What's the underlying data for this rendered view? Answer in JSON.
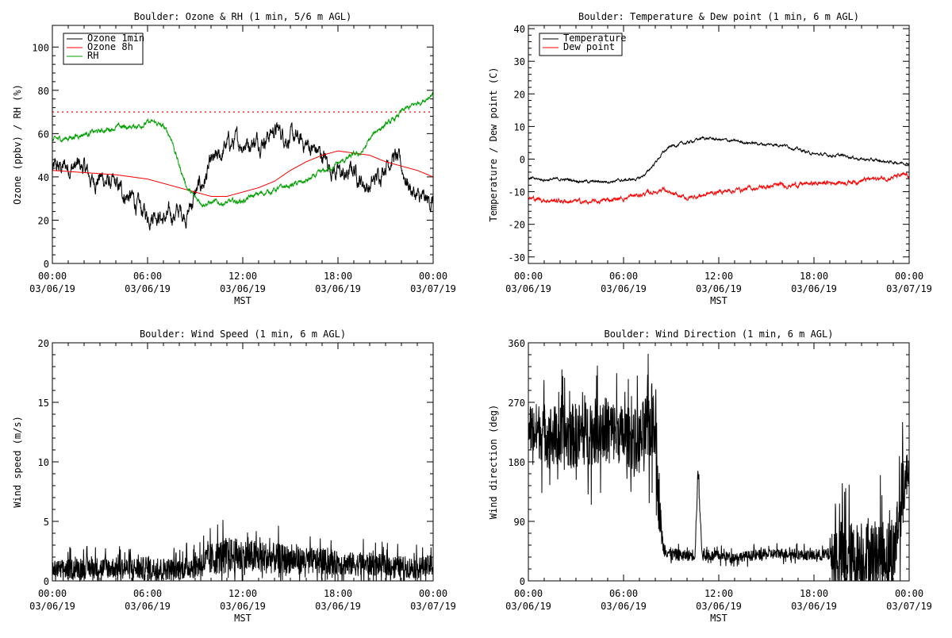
{
  "chart_data": [
    {
      "type": "line",
      "title": "Boulder: Ozone & RH (1 min, 5/6 m AGL)",
      "ylabel": "Ozone (ppbv) / RH (%)",
      "xlabel": "MST",
      "xlim": [
        0,
        24
      ],
      "ylim": [
        0,
        110
      ],
      "yticks": [
        0,
        20,
        40,
        60,
        80,
        100
      ],
      "xticks": [
        {
          "hour": 0,
          "line1": "00:00",
          "line2": "03/06/19"
        },
        {
          "hour": 6,
          "line1": "06:00",
          "line2": "03/06/19"
        },
        {
          "hour": 12,
          "line1": "12:00",
          "line2": "03/06/19"
        },
        {
          "hour": 18,
          "line1": "18:00",
          "line2": "03/06/19"
        },
        {
          "hour": 24,
          "line1": "00:00",
          "line2": "03/07/19"
        }
      ],
      "reference_line": {
        "y": 70,
        "color": "#ff0000",
        "style": "dotted"
      },
      "legend_position": "top-left",
      "series": [
        {
          "name": "Ozone 1min",
          "color": "#000000",
          "noise": 2.5,
          "x": [
            0,
            1,
            2,
            2.5,
            3,
            4,
            5,
            5.5,
            6,
            6.5,
            7,
            7.5,
            8,
            8.5,
            9,
            9.5,
            10,
            10.5,
            11,
            12,
            13,
            13.5,
            14,
            15,
            16,
            17,
            17.5,
            18,
            18.5,
            19,
            19.5,
            20,
            20.5,
            21,
            21.5,
            22,
            22.5,
            23,
            23.5,
            24
          ],
          "y": [
            43,
            45,
            44,
            38,
            40,
            35,
            30,
            25,
            22,
            25,
            20,
            22,
            24,
            23,
            32,
            37,
            45,
            48,
            55,
            56,
            57,
            59,
            62,
            58,
            55,
            50,
            45,
            42,
            40,
            44,
            38,
            35,
            40,
            47,
            50,
            44,
            36,
            30,
            28,
            29
          ]
        },
        {
          "name": "Ozone 8h",
          "color": "#ff0000",
          "noise": 0,
          "x": [
            0,
            2,
            4,
            6,
            8,
            9,
            10,
            11,
            12,
            13,
            14,
            15,
            16,
            17,
            18,
            19,
            20,
            21,
            22,
            23,
            24
          ],
          "y": [
            43,
            42,
            41,
            39,
            35,
            33,
            31,
            31,
            33,
            35,
            38,
            43,
            47,
            50,
            52,
            51,
            50,
            47,
            45,
            43,
            40
          ]
        },
        {
          "name": "RH",
          "color": "#00a000",
          "noise": 0.7,
          "x": [
            0,
            1,
            2,
            3,
            4,
            5,
            5.5,
            6,
            6.5,
            7,
            7.5,
            8,
            8.5,
            9,
            9.5,
            10,
            11,
            12,
            13,
            14,
            15,
            16,
            17,
            18,
            19,
            19.5,
            20,
            20.5,
            21,
            21.5,
            22,
            22.5,
            23,
            23.5,
            24
          ],
          "y": [
            57,
            58,
            60,
            61,
            63,
            63,
            64,
            65,
            65,
            63,
            58,
            45,
            35,
            30,
            28,
            28,
            28,
            29,
            32,
            34,
            36,
            38,
            42,
            46,
            50,
            51,
            57,
            62,
            64,
            66,
            70,
            72,
            74,
            76,
            79
          ]
        }
      ]
    },
    {
      "type": "line",
      "title": "Boulder: Temperature & Dew point (1 min, 6 m AGL)",
      "ylabel": "Temperature / Dew point (C)",
      "xlabel": "MST",
      "xlim": [
        0,
        24
      ],
      "ylim": [
        -32,
        41
      ],
      "yticks": [
        -30,
        -20,
        -10,
        0,
        10,
        20,
        30,
        40
      ],
      "xticks": [
        {
          "hour": 0,
          "line1": "00:00",
          "line2": "03/06/19"
        },
        {
          "hour": 6,
          "line1": "06:00",
          "line2": "03/06/19"
        },
        {
          "hour": 12,
          "line1": "12:00",
          "line2": "03/06/19"
        },
        {
          "hour": 18,
          "line1": "18:00",
          "line2": "03/06/19"
        },
        {
          "hour": 24,
          "line1": "00:00",
          "line2": "03/07/19"
        }
      ],
      "legend_position": "top-left",
      "series": [
        {
          "name": "Temperature",
          "color": "#000000",
          "noise": 0.25,
          "x": [
            0,
            1,
            2,
            3,
            4,
            5,
            6,
            7,
            7.5,
            8,
            8.5,
            9,
            10,
            11,
            12,
            13,
            14,
            15,
            16,
            17,
            18,
            19,
            20,
            21,
            22,
            23,
            24
          ],
          "y": [
            -6,
            -6.3,
            -6.2,
            -6.5,
            -7,
            -6.8,
            -6.5,
            -6,
            -4,
            -1,
            2,
            4,
            5,
            6.5,
            6,
            5.5,
            5,
            4.5,
            4.5,
            3,
            1.5,
            1.2,
            1,
            0,
            -0.5,
            -1,
            -1.2
          ]
        },
        {
          "name": "Dew point",
          "color": "#ff0000",
          "noise": 0.4,
          "x": [
            0,
            1,
            2,
            3,
            4,
            5,
            6,
            7,
            8,
            8.5,
            9,
            10,
            11,
            12,
            13,
            14,
            15,
            16,
            17,
            18,
            19,
            20,
            21,
            22,
            23,
            24
          ],
          "y": [
            -12,
            -12.5,
            -12.8,
            -13,
            -13.3,
            -12.5,
            -12,
            -11,
            -10,
            -9,
            -11,
            -12,
            -11,
            -10,
            -9.5,
            -9,
            -8.5,
            -8,
            -7.8,
            -7.5,
            -7.2,
            -7,
            -6.5,
            -6,
            -5.5,
            -5
          ]
        }
      ]
    },
    {
      "type": "line",
      "title": "Boulder: Wind Speed (1 min, 6 m AGL)",
      "ylabel": "Wind speed (m/s)",
      "xlabel": "MST",
      "xlim": [
        0,
        24
      ],
      "ylim": [
        0,
        20
      ],
      "yticks": [
        0,
        5,
        10,
        15,
        20
      ],
      "xticks": [
        {
          "hour": 0,
          "line1": "00:00",
          "line2": "03/06/19"
        },
        {
          "hour": 6,
          "line1": "06:00",
          "line2": "03/06/19"
        },
        {
          "hour": 12,
          "line1": "12:00",
          "line2": "03/06/19"
        },
        {
          "hour": 18,
          "line1": "18:00",
          "line2": "03/06/19"
        },
        {
          "hour": 24,
          "line1": "00:00",
          "line2": "03/07/19"
        }
      ],
      "series": [
        {
          "name": "",
          "color": "#000000",
          "noise": 0,
          "x": [
            0,
            2,
            4,
            6,
            8,
            9,
            10,
            11,
            12,
            13,
            14,
            15,
            16,
            17,
            18,
            19,
            20,
            21,
            22,
            23,
            24
          ],
          "y": [
            0.9,
            1.1,
            1.1,
            1.0,
            1.0,
            1.3,
            1.8,
            2.2,
            2.0,
            2.0,
            1.9,
            1.8,
            1.7,
            1.6,
            1.5,
            1.4,
            1.4,
            1.3,
            1.2,
            1.1,
            1.3
          ],
          "spread": [
            0.8,
            0.9,
            0.9,
            1.0,
            0.9,
            1.1,
            1.4,
            1.5,
            1.5,
            1.4,
            1.3,
            1.2,
            1.1,
            1.1,
            1.0,
            1.0,
            1.0,
            0.9,
            0.9,
            0.9,
            0.9
          ]
        }
      ]
    },
    {
      "type": "line",
      "title": "Boulder: Wind Direction (1 min, 6 m AGL)",
      "ylabel": "Wind direction (deg)",
      "xlabel": "MST",
      "xlim": [
        0,
        24
      ],
      "ylim": [
        0,
        360
      ],
      "yticks": [
        0,
        90,
        180,
        270,
        360
      ],
      "xticks": [
        {
          "hour": 0,
          "line1": "00:00",
          "line2": "03/06/19"
        },
        {
          "hour": 6,
          "line1": "06:00",
          "line2": "03/06/19"
        },
        {
          "hour": 12,
          "line1": "12:00",
          "line2": "03/06/19"
        },
        {
          "hour": 18,
          "line1": "18:00",
          "line2": "03/06/19"
        },
        {
          "hour": 24,
          "line1": "00:00",
          "line2": "03/07/19"
        }
      ],
      "series": [
        {
          "name": "",
          "color": "#000000",
          "noise": 0,
          "x": [
            0,
            1,
            2,
            3,
            4,
            5,
            6,
            7,
            7.5,
            8,
            8.2,
            8.5,
            9,
            10,
            10.5,
            10.7,
            10.9,
            11,
            12,
            13,
            14,
            15,
            16,
            17,
            18,
            19,
            19.2,
            19.5,
            20,
            21,
            22,
            23,
            23.5,
            24
          ],
          "y": [
            230,
            225,
            215,
            220,
            225,
            230,
            220,
            210,
            230,
            250,
            120,
            50,
            40,
            38,
            40,
            170,
            60,
            38,
            38,
            36,
            38,
            40,
            42,
            40,
            38,
            40,
            35,
            40,
            30,
            35,
            40,
            40,
            120,
            180
          ],
          "spread": [
            40,
            45,
            50,
            50,
            50,
            50,
            45,
            50,
            60,
            60,
            40,
            12,
            10,
            8,
            10,
            10,
            10,
            8,
            8,
            7,
            8,
            8,
            8,
            8,
            8,
            10,
            50,
            55,
            60,
            55,
            55,
            55,
            60,
            25
          ]
        }
      ]
    }
  ]
}
